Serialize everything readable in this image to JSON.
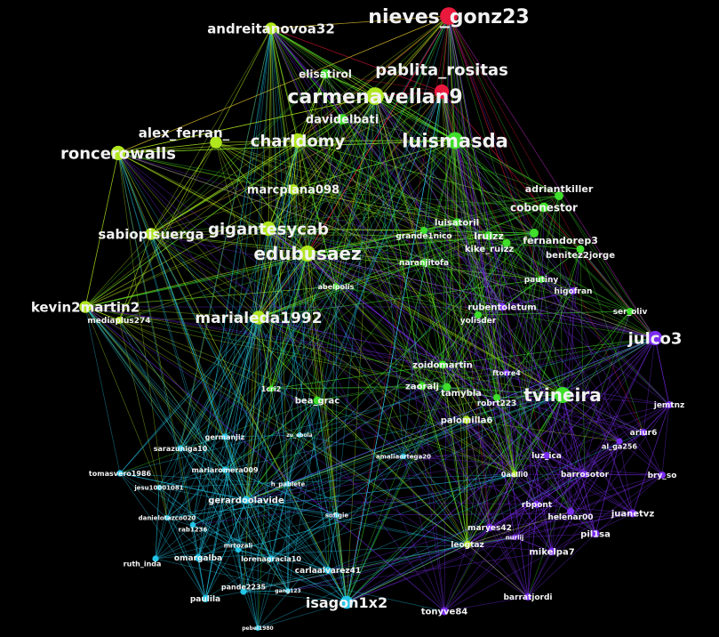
{
  "groups": {
    "red": "#e8193c",
    "lime": "#b0e61e",
    "green": "#3ede2a",
    "cyan": "#22c6e8",
    "purple": "#7a2cf0"
  },
  "nodes": [
    {
      "label": "nieves_gonz23",
      "group": "red"
    },
    {
      "label": "andreitanovoa32",
      "group": "lime"
    },
    {
      "label": "elisatirol",
      "group": "green"
    },
    {
      "label": "carmenavellan9",
      "group": "lime"
    },
    {
      "label": "pablita_rositas",
      "group": "red"
    },
    {
      "label": "davidelbati",
      "group": "green"
    },
    {
      "label": "luismasda",
      "group": "green"
    },
    {
      "label": "charldomy",
      "group": "lime"
    },
    {
      "label": "alex_ferran_",
      "group": "lime"
    },
    {
      "label": "roncerowalls",
      "group": "lime"
    },
    {
      "label": "marcplana098",
      "group": "lime"
    },
    {
      "label": "adriantkiller",
      "group": "green"
    },
    {
      "label": "cobonestor",
      "group": "green"
    },
    {
      "label": "luisatoril",
      "group": "green"
    },
    {
      "label": "grande1nico",
      "group": "green"
    },
    {
      "label": "lruizz",
      "group": "green"
    },
    {
      "label": "fernandorep3",
      "group": "green"
    },
    {
      "label": "kike_ruizz",
      "group": "green"
    },
    {
      "label": "benitez2jorge",
      "group": "green"
    },
    {
      "label": "naranjitofa",
      "group": "green"
    },
    {
      "label": "gigantesycab",
      "group": "lime"
    },
    {
      "label": "sabiopisuerga",
      "group": "lime"
    },
    {
      "label": "edubusaez",
      "group": "lime"
    },
    {
      "label": "abelpolis",
      "group": "green"
    },
    {
      "label": "pautiny",
      "group": "green"
    },
    {
      "label": "higofran",
      "group": "purple"
    },
    {
      "label": "rubentoletum",
      "group": "purple"
    },
    {
      "label": "yolisder",
      "group": "green"
    },
    {
      "label": "ser_oliv",
      "group": "green"
    },
    {
      "label": "kevin2martin2",
      "group": "lime"
    },
    {
      "label": "mediaplus274",
      "group": "lime"
    },
    {
      "label": "marialeda1992",
      "group": "lime"
    },
    {
      "label": "julco3",
      "group": "purple"
    },
    {
      "label": "zoidomartin",
      "group": "green"
    },
    {
      "label": "ftorre4",
      "group": "purple"
    },
    {
      "label": "zaoralj",
      "group": "green"
    },
    {
      "label": "tamybla",
      "group": "green"
    },
    {
      "label": "robrt223",
      "group": "green"
    },
    {
      "label": "tvineira",
      "group": "green"
    },
    {
      "label": "1cri2",
      "group": "green"
    },
    {
      "label": "bea_grac",
      "group": "green"
    },
    {
      "label": "jemtnz",
      "group": "purple"
    },
    {
      "label": "palomilla6",
      "group": "lime"
    },
    {
      "label": "ariur6",
      "group": "purple"
    },
    {
      "label": "al_ga256",
      "group": "purple"
    },
    {
      "label": "germanjiz",
      "group": "cyan"
    },
    {
      "label": "zu_ebola",
      "group": "cyan"
    },
    {
      "label": "sarazuniga10",
      "group": "cyan"
    },
    {
      "label": "tomasvero1986",
      "group": "cyan"
    },
    {
      "label": "mariaromera009",
      "group": "cyan"
    },
    {
      "label": "jesu10001081",
      "group": "cyan"
    },
    {
      "label": "amaliaortega20",
      "group": "cyan"
    },
    {
      "label": "luz_ica",
      "group": "purple"
    },
    {
      "label": "0aalli0",
      "group": "lime"
    },
    {
      "label": "barrosotor",
      "group": "purple"
    },
    {
      "label": "bry_so",
      "group": "purple"
    },
    {
      "label": "h_pablete",
      "group": "cyan"
    },
    {
      "label": "gerardoolavide",
      "group": "cyan"
    },
    {
      "label": "danielotazco020",
      "group": "cyan"
    },
    {
      "label": "rab1236",
      "group": "cyan"
    },
    {
      "label": "sofigie",
      "group": "cyan"
    },
    {
      "label": "rbpont",
      "group": "purple"
    },
    {
      "label": "helenar00",
      "group": "purple"
    },
    {
      "label": "juanetvz",
      "group": "purple"
    },
    {
      "label": "maryes42",
      "group": "purple"
    },
    {
      "label": "nurlij",
      "group": "purple"
    },
    {
      "label": "leogtaz",
      "group": "lime"
    },
    {
      "label": "pil1sa",
      "group": "purple"
    },
    {
      "label": "mikelpa7",
      "group": "purple"
    },
    {
      "label": "mrtozali",
      "group": "cyan"
    },
    {
      "label": "ruth_inda",
      "group": "cyan"
    },
    {
      "label": "omargalba",
      "group": "cyan"
    },
    {
      "label": "lorenagracia10",
      "group": "cyan"
    },
    {
      "label": "carlaalvarez41",
      "group": "cyan"
    },
    {
      "label": "pande2235",
      "group": "cyan"
    },
    {
      "label": "gang123",
      "group": "cyan"
    },
    {
      "label": "paulila",
      "group": "cyan"
    },
    {
      "label": "isagon1x2",
      "group": "cyan"
    },
    {
      "label": "barratjordi",
      "group": "purple"
    },
    {
      "label": "tonyve84",
      "group": "purple"
    },
    {
      "label": "pebel1980",
      "group": "cyan"
    }
  ]
}
